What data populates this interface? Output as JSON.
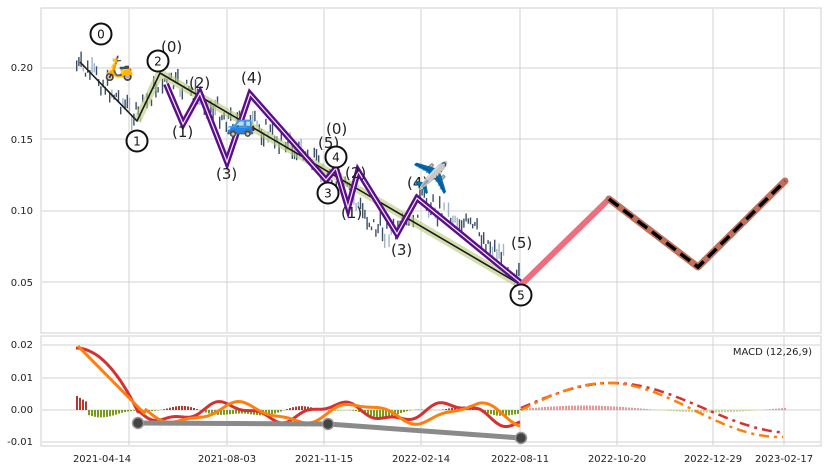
{
  "chart_data": [
    {
      "type": "line",
      "panel": "price",
      "title": "",
      "xlabel": "",
      "ylabel": "",
      "ylim": [
        0.02,
        0.24
      ],
      "yticks": [
        "0.05",
        "0.10",
        "0.15",
        "0.20"
      ],
      "grid": true,
      "x_dates": [
        "2021-04-14",
        "2021-08-03",
        "2021-11-15",
        "2022-02-14",
        "2022-08-11",
        "2022-10-20",
        "2022-12-29",
        "2023-02-17"
      ],
      "candles_summary": {
        "start": "2021-03-15",
        "end": "2022-08-20",
        "start_price": 0.2,
        "end_price": 0.05
      },
      "series": [
        {
          "role": "trend-line",
          "points": [
            [
              "2021-03-20",
              0.198
            ],
            [
              "2021-05-10",
              0.165
            ],
            [
              "2021-06-01",
              0.196
            ],
            [
              "2022-08-20",
              0.048
            ]
          ]
        },
        {
          "role": "purple-zigzag",
          "points": [
            [
              "2021-06-10",
              0.19
            ],
            [
              "2021-06-30",
              0.16
            ],
            [
              "2021-07-20",
              0.183
            ],
            [
              "2021-08-20",
              0.13
            ],
            [
              "2021-09-10",
              0.183
            ],
            [
              "2021-11-25",
              0.12
            ],
            [
              "2021-12-05",
              0.135
            ],
            [
              "2021-12-20",
              0.1
            ],
            [
              "2022-01-05",
              0.125
            ],
            [
              "2022-02-10",
              0.096
            ],
            [
              "2022-04-10",
              0.075
            ],
            [
              "2022-05-10",
              0.11
            ],
            [
              "2022-08-20",
              0.05
            ]
          ]
        },
        {
          "role": "pink-projection",
          "points": [
            [
              "2022-08-20",
              0.05
            ],
            [
              "2022-10-20",
              0.11
            ]
          ]
        },
        {
          "role": "brown-projection",
          "points": [
            [
              "2022-10-20",
              0.11
            ],
            [
              "2022-12-29",
              0.06
            ],
            [
              "2023-02-25",
              0.122
            ]
          ]
        }
      ],
      "wave_labels": [
        "(0)",
        "(2)",
        "(4)",
        "(1)",
        "(3)",
        "(0)",
        "(5)",
        "(2)",
        "(1)",
        "(3)",
        "(4)",
        "(3)",
        "(5)"
      ],
      "circled_labels": [
        "0",
        "1",
        "2",
        "3",
        "4",
        "5"
      ],
      "emojis": [
        "🛵",
        "🚙",
        "✈️"
      ]
    },
    {
      "type": "line",
      "panel": "macd",
      "title": "",
      "legend": "MACD (12,26,9)",
      "ylim": [
        -0.012,
        0.022
      ],
      "yticks": [
        "0.02",
        "0.01",
        "0.00",
        "-0.01"
      ],
      "xticks": [
        "2021-04-14",
        "2021-08-03",
        "2021-11-15",
        "2022-02-14",
        "2022-08-11",
        "2022-10-20",
        "2022-12-29",
        "2023-02-17"
      ],
      "grid": true,
      "series": [
        {
          "role": "macd-line",
          "color": "#d63030"
        },
        {
          "role": "signal-line",
          "color": "#ff7f0e"
        },
        {
          "role": "divergence-line",
          "points": [
            [
              "2021-05-25",
              -0.004
            ],
            [
              "2021-12-01",
              -0.0045
            ],
            [
              "2022-08-20",
              -0.0095
            ]
          ]
        }
      ]
    }
  ],
  "colors": {
    "purple": "#5b0e8a",
    "trend": "#1b1b1b",
    "trend_glow": "#b7c97b",
    "pink": "#ef6d7e",
    "brown": "#c0705a",
    "dash": "#000000",
    "grid": "#d0d0d0",
    "bar_dark": "#3b4f66",
    "hist_pos": "#b03a2e",
    "hist_neg": "#7a9a1a"
  }
}
